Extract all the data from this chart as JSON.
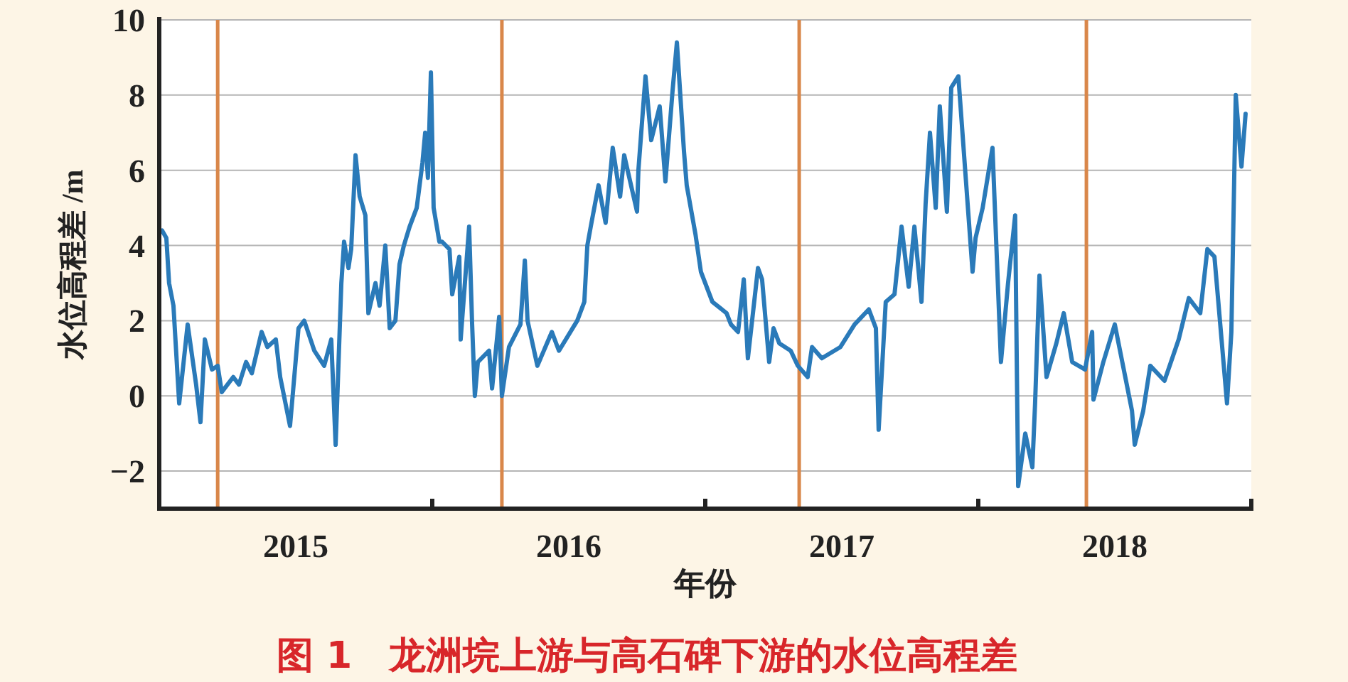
{
  "chart_data": {
    "type": "line",
    "title": "图 1　龙洲垸上游与高石碑下游的水位高程差",
    "xlabel": "年份",
    "ylabel": "水位高程差 /m",
    "x": [
      2015.01,
      2015.026,
      2015.036,
      2015.052,
      2015.073,
      2015.104,
      2015.135,
      2015.151,
      2015.167,
      2015.193,
      2015.214,
      2015.229,
      2015.271,
      2015.292,
      2015.318,
      2015.339,
      2015.375,
      2015.396,
      2015.427,
      2015.443,
      2015.479,
      2015.51,
      2015.531,
      2015.568,
      2015.604,
      2015.63,
      2015.646,
      2015.667,
      2015.677,
      2015.693,
      2015.703,
      2015.719,
      2015.734,
      2015.755,
      2015.766,
      2015.792,
      2015.807,
      2015.828,
      2015.844,
      2015.865,
      2015.88,
      2015.896,
      2015.917,
      2015.943,
      2015.964,
      2015.974,
      2015.984,
      2015.995,
      2016.005,
      2016.026,
      2016.036,
      2016.063,
      2016.073,
      2016.099,
      2016.104,
      2016.135,
      2016.146,
      2016.156,
      2016.167,
      2016.208,
      2016.219,
      2016.245,
      2016.255,
      2016.281,
      2016.323,
      2016.339,
      2016.349,
      2016.385,
      2016.438,
      2016.464,
      2016.531,
      2016.557,
      2016.568,
      2016.583,
      2016.609,
      2016.635,
      2016.661,
      2016.688,
      2016.703,
      2016.75,
      2016.755,
      2016.781,
      2016.802,
      2016.833,
      2016.854,
      2016.88,
      2016.896,
      2016.922,
      2016.932,
      2016.964,
      2016.984,
      2017.026,
      2017.078,
      2017.094,
      2017.12,
      2017.141,
      2017.156,
      2017.193,
      2017.208,
      2017.234,
      2017.25,
      2017.271,
      2017.313,
      2017.339,
      2017.375,
      2017.391,
      2017.427,
      2017.495,
      2017.547,
      2017.599,
      2017.625,
      2017.635,
      2017.661,
      2017.693,
      2017.719,
      2017.745,
      2017.766,
      2017.792,
      2017.807,
      2017.823,
      2017.844,
      2017.859,
      2017.885,
      2017.901,
      2017.927,
      2017.979,
      2017.99,
      2018.016,
      2018.052,
      2018.083,
      2018.109,
      2018.135,
      2018.146,
      2018.172,
      2018.198,
      2018.208,
      2018.224,
      2018.25,
      2018.286,
      2018.313,
      2018.344,
      2018.391,
      2018.417,
      2018.422,
      2018.458,
      2018.5,
      2018.563,
      2018.573,
      2018.604,
      2018.63,
      2018.682,
      2018.734,
      2018.771,
      2018.813,
      2018.839,
      2018.865,
      2018.891,
      2018.911,
      2018.927,
      2018.943,
      2018.964,
      2018.979
    ],
    "series": [
      {
        "color": "#2a7ab9",
        "values": [
          4.4,
          4.2,
          3.0,
          2.4,
          -0.2,
          1.9,
          0.3,
          -0.7,
          1.5,
          0.7,
          0.8,
          0.1,
          0.5,
          0.3,
          0.9,
          0.6,
          1.7,
          1.3,
          1.5,
          0.5,
          -0.8,
          1.8,
          2.0,
          1.2,
          0.8,
          1.5,
          -1.3,
          3.0,
          4.1,
          3.4,
          3.9,
          6.4,
          5.3,
          4.8,
          2.2,
          3.0,
          2.4,
          4.0,
          1.8,
          2.0,
          3.5,
          4.0,
          4.5,
          5.0,
          6.2,
          7.0,
          5.8,
          8.6,
          5.0,
          4.1,
          4.1,
          3.9,
          2.7,
          3.7,
          1.5,
          4.5,
          1.9,
          0.0,
          0.9,
          1.2,
          0.2,
          2.1,
          0.0,
          1.3,
          1.9,
          3.6,
          2.0,
          0.8,
          1.7,
          1.2,
          2.0,
          2.5,
          4.0,
          4.6,
          5.6,
          4.6,
          6.6,
          5.3,
          6.4,
          4.9,
          6.0,
          8.5,
          6.8,
          7.7,
          5.7,
          8.1,
          9.4,
          6.5,
          5.6,
          4.3,
          3.3,
          2.5,
          2.2,
          1.9,
          1.7,
          3.1,
          1.0,
          3.4,
          3.1,
          0.9,
          1.8,
          1.4,
          1.2,
          0.8,
          0.5,
          1.3,
          1.0,
          1.3,
          1.9,
          2.3,
          1.8,
          -0.9,
          2.5,
          2.7,
          4.5,
          2.9,
          4.5,
          2.5,
          5.1,
          7.0,
          5.0,
          7.7,
          4.9,
          8.2,
          8.5,
          3.3,
          4.2,
          5.0,
          6.6,
          0.9,
          3.0,
          4.8,
          -2.4,
          -1.0,
          -1.9,
          -0.2,
          3.2,
          0.5,
          1.4,
          2.2,
          0.9,
          0.7,
          1.7,
          -0.1,
          0.9,
          1.9,
          -0.4,
          -1.3,
          -0.4,
          0.8,
          0.4,
          1.5,
          2.6,
          2.2,
          3.9,
          3.7,
          1.5,
          -0.2,
          1.7,
          8.0,
          6.1,
          7.5
        ]
      }
    ],
    "xlim": [
      2015,
      2019
    ],
    "ylim": [
      -3,
      10
    ],
    "xticks": [
      {
        "value": 2015.5,
        "label": "2015"
      },
      {
        "value": 2016,
        "label": null
      },
      {
        "value": 2016.5,
        "label": "2016"
      },
      {
        "value": 2017,
        "label": null
      },
      {
        "value": 2017.5,
        "label": "2017"
      },
      {
        "value": 2018,
        "label": null
      },
      {
        "value": 2018.5,
        "label": "2018"
      },
      {
        "value": 2019,
        "label": null
      }
    ],
    "yticks": [
      -2,
      0,
      2,
      4,
      6,
      8,
      10
    ],
    "grid": "y",
    "ref_lines": [
      {
        "axis": "x",
        "value": 2015.214,
        "color": "#d9874a"
      },
      {
        "axis": "x",
        "value": 2016.255,
        "color": "#d9874a"
      },
      {
        "axis": "x",
        "value": 2017.344,
        "color": "#d9874a"
      },
      {
        "axis": "x",
        "value": 2018.396,
        "color": "#d9874a"
      }
    ]
  }
}
